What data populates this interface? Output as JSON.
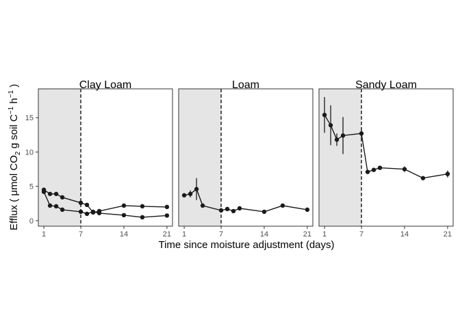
{
  "chart_data": {
    "type": "line",
    "xlabel": "Time since moisture adjustment (days)",
    "ylabel": {
      "prefix": "Efflux ( μmol CO",
      "co2_sub": "2",
      "mid": " g soil C",
      "c_sup": "−1",
      "tail": " h",
      "h_sup": "−1",
      "suffix": " )"
    },
    "xticks": [
      1,
      7,
      14,
      21
    ],
    "yticks": [
      0,
      5,
      10,
      15
    ],
    "xlim": [
      0.1,
      21.9
    ],
    "ylim": [
      -0.8,
      19.2
    ],
    "shaded_region": [
      0.1,
      7
    ],
    "vline_x": 7,
    "grid": false,
    "facets": [
      {
        "title": "Clay Loam",
        "series": [
          {
            "x": [
              1,
              2,
              3,
              4,
              7,
              8,
              9,
              10,
              14,
              17,
              21
            ],
            "y": [
              4.5,
              3.9,
              3.9,
              3.4,
              2.6,
              2.3,
              1.2,
              1.4,
              2.2,
              2.1,
              2.0
            ],
            "err": [
              0.25,
              0.2,
              0.2,
              0.2,
              0.2,
              0.2,
              0.2,
              0.2,
              0.2,
              0.2,
              0.2
            ]
          },
          {
            "x": [
              1,
              2,
              3,
              4,
              7,
              8,
              9,
              10,
              14,
              17,
              21
            ],
            "y": [
              4.2,
              2.2,
              2.1,
              1.6,
              1.3,
              1.0,
              1.3,
              1.1,
              0.8,
              0.5,
              0.75
            ],
            "err": [
              0.25,
              0.2,
              0.2,
              0.2,
              0.2,
              0.2,
              0.2,
              0.2,
              0.2,
              0.2,
              0.2
            ]
          }
        ]
      },
      {
        "title": "Loam",
        "series": [
          {
            "x": [
              1,
              2,
              3,
              4,
              7,
              8,
              9,
              10,
              14,
              17,
              21
            ],
            "y": [
              3.7,
              3.9,
              4.6,
              2.2,
              1.5,
              1.7,
              1.4,
              1.8,
              1.3,
              2.2,
              1.6
            ],
            "err": [
              0.3,
              0.5,
              1.6,
              0.2,
              0.3,
              0.2,
              0.2,
              0.2,
              0.2,
              0.2,
              0.2
            ]
          }
        ]
      },
      {
        "title": "Sandy Loam",
        "series": [
          {
            "x": [
              1,
              2,
              3,
              4,
              7,
              8,
              9,
              10,
              14,
              17,
              21
            ],
            "y": [
              15.4,
              13.9,
              11.8,
              12.4,
              12.7,
              7.1,
              7.4,
              7.7,
              7.5,
              6.2,
              6.8
            ],
            "err": [
              2.6,
              2.9,
              0.9,
              2.7,
              0.7,
              0.3,
              0.3,
              0.2,
              0.4,
              0.2,
              0.5
            ]
          }
        ]
      }
    ]
  }
}
